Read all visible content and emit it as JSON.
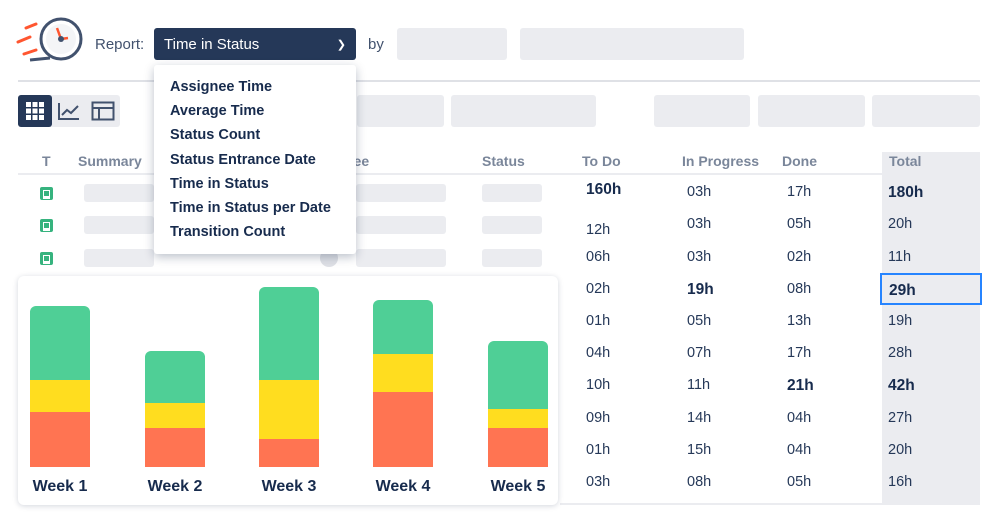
{
  "header": {
    "report_label": "Report:",
    "selected_report": "Time in Status",
    "by_label": "by"
  },
  "report_menu": [
    "Assignee Time",
    "Average Time",
    "Status Count",
    "Status Entrance Date",
    "Time in Status",
    "Time in Status per Date",
    "Transition Count"
  ],
  "views": [
    "grid-icon",
    "chart-line-icon",
    "layout-icon"
  ],
  "table": {
    "headers": {
      "type": "T",
      "summary": "Summary",
      "assignee": "nee",
      "status": "Status",
      "todo": "To Do",
      "inprogress": "In Progress",
      "done": "Done",
      "total": "Total"
    },
    "rows": [
      {
        "todo": "160h",
        "inprogress": "03h",
        "done": "17h",
        "total": "180h"
      },
      {
        "todo": "12h",
        "inprogress": "03h",
        "done": "05h",
        "total": "20h"
      },
      {
        "todo": "06h",
        "inprogress": "03h",
        "done": "02h",
        "total": "11h"
      },
      {
        "todo": "02h",
        "inprogress": "19h",
        "done": "08h",
        "total": "29h"
      },
      {
        "todo": "01h",
        "inprogress": "05h",
        "done": "13h",
        "total": "19h"
      },
      {
        "todo": "04h",
        "inprogress": "07h",
        "done": "17h",
        "total": "28h"
      },
      {
        "todo": "10h",
        "inprogress": "11h",
        "done": "21h",
        "total": "42h"
      },
      {
        "todo": "09h",
        "inprogress": "14h",
        "done": "04h",
        "total": "27h"
      },
      {
        "todo": "01h",
        "inprogress": "15h",
        "done": "04h",
        "total": "20h"
      },
      {
        "todo": "03h",
        "inprogress": "08h",
        "done": "05h",
        "total": "16h"
      }
    ],
    "bold": [
      [
        0,
        "todo"
      ],
      [
        0,
        "total"
      ],
      [
        3,
        "inprogress"
      ],
      [
        3,
        "total"
      ],
      [
        6,
        "done"
      ],
      [
        6,
        "total"
      ]
    ],
    "selected_cell": [
      3,
      "total"
    ]
  },
  "chart_data": {
    "type": "bar",
    "stacked": true,
    "categories": [
      "Week 1",
      "Week 2",
      "Week 3",
      "Week 4",
      "Week 5"
    ],
    "series": [
      {
        "color": "#ff7452",
        "values": [
          55,
          39,
          28,
          75,
          39
        ]
      },
      {
        "color": "#ffdd1f",
        "values": [
          32,
          25,
          59,
          38,
          19
        ]
      },
      {
        "color": "#4fcf96",
        "values": [
          74,
          52,
          93,
          54,
          68
        ]
      }
    ]
  }
}
